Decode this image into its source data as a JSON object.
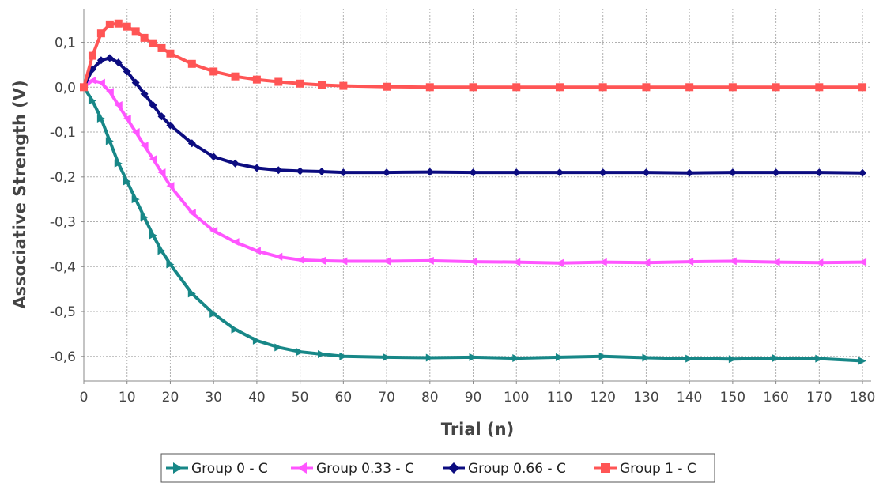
{
  "chart_data": {
    "type": "line",
    "xlabel": "Trial (n)",
    "ylabel": "Associative Strength (V)",
    "xlim": [
      0,
      182
    ],
    "ylim": [
      -0.655,
      0.175
    ],
    "x_ticks": [
      0,
      10,
      20,
      30,
      40,
      50,
      60,
      70,
      80,
      90,
      100,
      110,
      120,
      130,
      140,
      150,
      160,
      170,
      180
    ],
    "x_tick_labels": [
      "0",
      "10",
      "20",
      "30",
      "40",
      "50",
      "60",
      "70",
      "80",
      "90",
      "100",
      "110",
      "120",
      "130",
      "140",
      "150",
      "160",
      "170",
      "180"
    ],
    "y_ticks": [
      0.1,
      0.0,
      -0.1,
      -0.2,
      -0.3,
      -0.4,
      -0.5,
      -0.6
    ],
    "y_tick_labels": [
      "0,1",
      "0,0",
      "-0,1",
      "-0,2",
      "-0,3",
      "-0,4",
      "-0,5",
      "-0,6"
    ],
    "grid": true,
    "legend_position": "bottom",
    "series": [
      {
        "name": "Group 0 - C",
        "color": "#178787",
        "marker": "triangle-right",
        "x": [
          0,
          2,
          4,
          6,
          8,
          10,
          12,
          14,
          16,
          18,
          20,
          25,
          30,
          35,
          40,
          45,
          50,
          55,
          60,
          70,
          80,
          90,
          100,
          110,
          120,
          130,
          140,
          150,
          160,
          170,
          180
        ],
        "y": [
          0.0,
          -0.03,
          -0.07,
          -0.12,
          -0.17,
          -0.21,
          -0.25,
          -0.29,
          -0.33,
          -0.365,
          -0.395,
          -0.46,
          -0.505,
          -0.54,
          -0.565,
          -0.58,
          -0.59,
          -0.595,
          -0.6,
          -0.602,
          -0.603,
          -0.602,
          -0.604,
          -0.602,
          -0.6,
          -0.603,
          -0.605,
          -0.606,
          -0.604,
          -0.605,
          -0.61
        ]
      },
      {
        "name": "Group 0.33 - C",
        "color": "#ff55ff",
        "marker": "triangle-left",
        "x": [
          0,
          2,
          4,
          6,
          8,
          10,
          12,
          14,
          16,
          18,
          20,
          25,
          30,
          35,
          40,
          45,
          50,
          55,
          60,
          70,
          80,
          90,
          100,
          110,
          120,
          130,
          140,
          150,
          160,
          170,
          180
        ],
        "y": [
          0.0,
          0.015,
          0.01,
          -0.01,
          -0.04,
          -0.07,
          -0.1,
          -0.13,
          -0.16,
          -0.19,
          -0.22,
          -0.28,
          -0.32,
          -0.345,
          -0.365,
          -0.378,
          -0.385,
          -0.387,
          -0.388,
          -0.388,
          -0.387,
          -0.389,
          -0.39,
          -0.392,
          -0.39,
          -0.391,
          -0.389,
          -0.388,
          -0.39,
          -0.391,
          -0.39
        ]
      },
      {
        "name": "Group 0.66 - C",
        "color": "#0c0c80",
        "marker": "diamond",
        "x": [
          0,
          2,
          4,
          6,
          8,
          10,
          12,
          14,
          16,
          18,
          20,
          25,
          30,
          35,
          40,
          45,
          50,
          55,
          60,
          70,
          80,
          90,
          100,
          110,
          120,
          130,
          140,
          150,
          160,
          170,
          180
        ],
        "y": [
          0.0,
          0.04,
          0.06,
          0.065,
          0.055,
          0.035,
          0.01,
          -0.015,
          -0.04,
          -0.065,
          -0.085,
          -0.125,
          -0.155,
          -0.17,
          -0.18,
          -0.185,
          -0.187,
          -0.188,
          -0.19,
          -0.19,
          -0.189,
          -0.19,
          -0.19,
          -0.19,
          -0.19,
          -0.19,
          -0.191,
          -0.19,
          -0.19,
          -0.19,
          -0.191
        ]
      },
      {
        "name": "Group 1 - C",
        "color": "#ff5555",
        "marker": "square",
        "x": [
          0,
          2,
          4,
          6,
          8,
          10,
          12,
          14,
          16,
          18,
          20,
          25,
          30,
          35,
          40,
          45,
          50,
          55,
          60,
          70,
          80,
          90,
          100,
          110,
          120,
          130,
          140,
          150,
          160,
          170,
          180
        ],
        "y": [
          0.0,
          0.07,
          0.12,
          0.14,
          0.142,
          0.135,
          0.125,
          0.11,
          0.098,
          0.087,
          0.075,
          0.052,
          0.035,
          0.024,
          0.017,
          0.012,
          0.008,
          0.005,
          0.003,
          0.001,
          0.0,
          0.0,
          0.0,
          0.0,
          0.0,
          0.0,
          0.0,
          0.0,
          0.0,
          0.0,
          0.0
        ]
      }
    ]
  }
}
